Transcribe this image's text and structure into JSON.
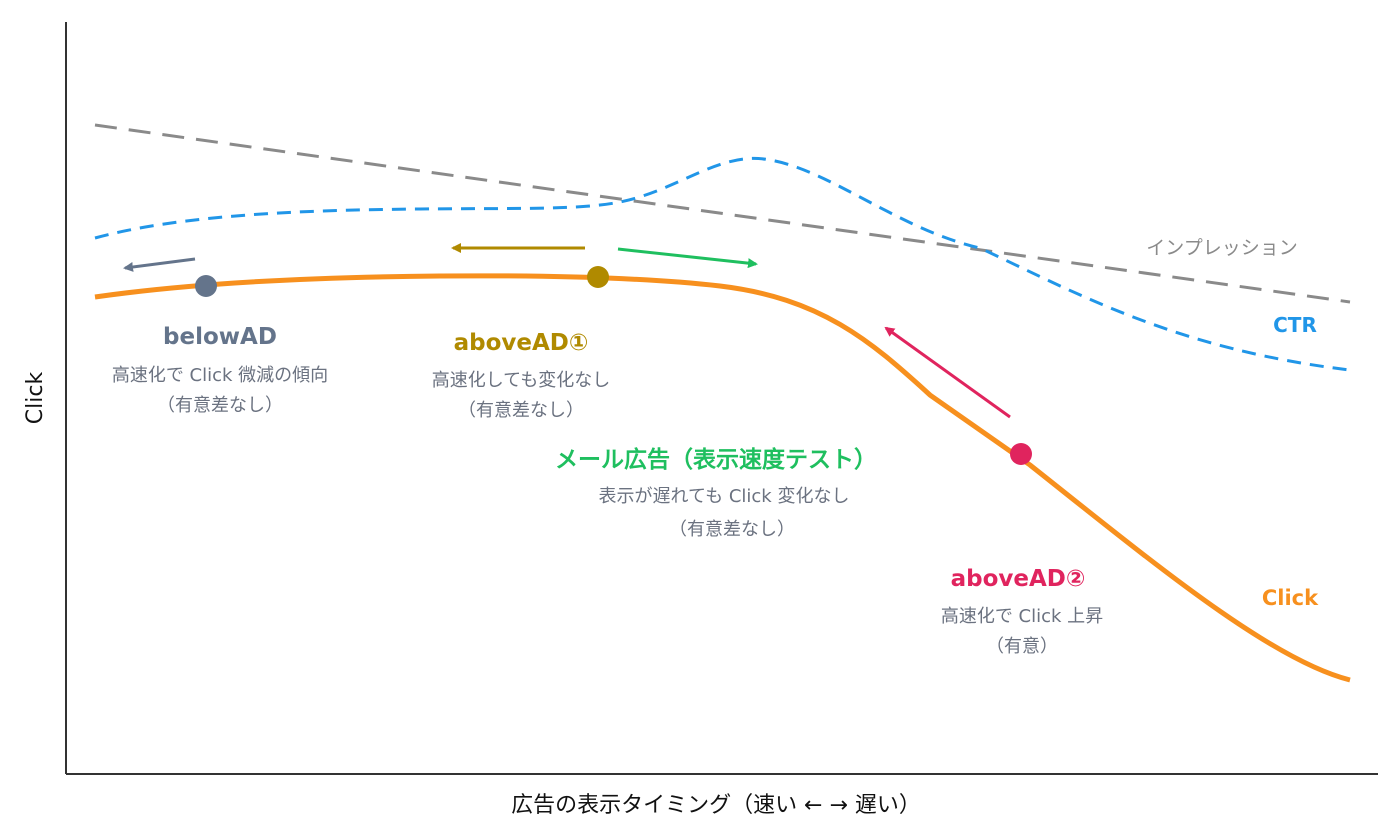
{
  "axes": {
    "y_label": "Click",
    "x_label": "広告の表示タイミング（速い ← → 遅い）"
  },
  "series": {
    "impression": {
      "label": "インプレッション",
      "color": "#8a8a8a",
      "style": "dashed"
    },
    "ctr": {
      "label": "CTR",
      "color": "#2196e8",
      "style": "dashed"
    },
    "click": {
      "label": "Click",
      "color": "#f7901e",
      "style": "solid"
    }
  },
  "annotations": {
    "below_ad": {
      "title": "belowAD",
      "desc1": "高速化で Click 微減の傾向",
      "desc2": "（有意差なし）",
      "color": "#64748b"
    },
    "above_ad_1": {
      "title": "aboveAD①",
      "desc1": "高速化しても変化なし",
      "desc2": "（有意差なし）",
      "color": "#b08a00"
    },
    "mail_ad": {
      "title": "メール広告（表示速度テスト）",
      "desc1": "表示が遅れても Click 変化なし",
      "desc2": "（有意差なし）",
      "color": "#1fbf5f"
    },
    "above_ad_2": {
      "title": "aboveAD②",
      "desc1": "高速化で Click 上昇",
      "desc2": "（有意）",
      "color": "#e0245e"
    }
  }
}
